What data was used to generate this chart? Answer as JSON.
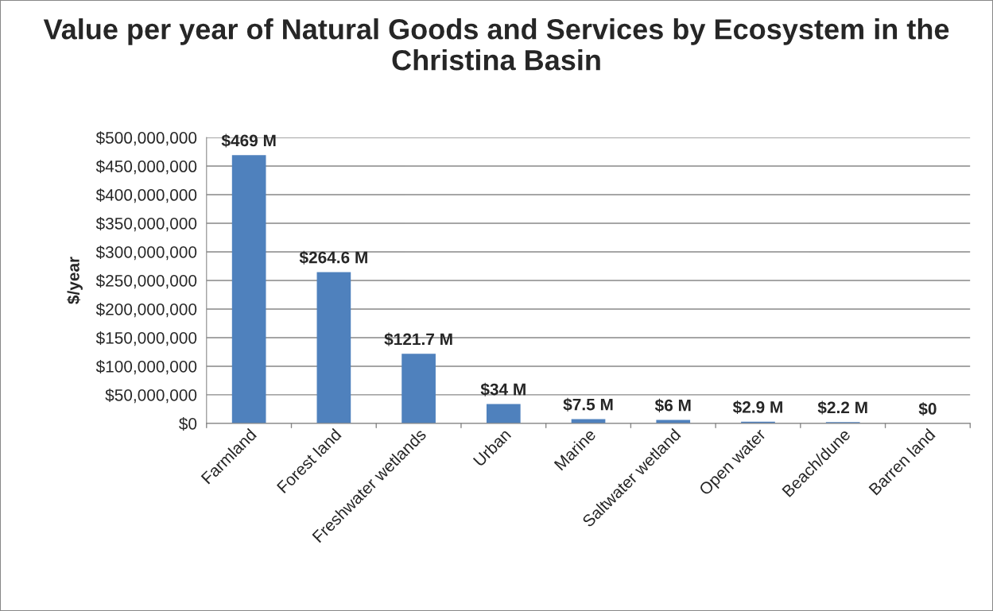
{
  "chart_data": {
    "type": "bar",
    "title": "Value per year of Natural Goods and Services by Ecosystem in the Christina Basin",
    "ylabel": "$/year",
    "categories": [
      "Farmland",
      "Forest land",
      "Freshwater wetlands",
      "Urban",
      "Marine",
      "Saltwater wetland",
      "Open water",
      "Beach/dune",
      "Barren land"
    ],
    "values": [
      469000000,
      264600000,
      121700000,
      34000000,
      7500000,
      6000000,
      2900000,
      2200000,
      0
    ],
    "value_labels": [
      "$469 M",
      "$264.6 M",
      "$121.7 M",
      "$34 M",
      "$7.5 M",
      "$6 M",
      "$2.9 M",
      "$2.2 M",
      "$0"
    ],
    "color": "#4f81bd",
    "ylim": [
      0,
      500000000
    ],
    "yticks": [
      {
        "value": 0,
        "label": "$0"
      },
      {
        "value": 50000000,
        "label": "$50,000,000"
      },
      {
        "value": 100000000,
        "label": "$100,000,000"
      },
      {
        "value": 150000000,
        "label": "$150,000,000"
      },
      {
        "value": 200000000,
        "label": "$200,000,000"
      },
      {
        "value": 250000000,
        "label": "$250,000,000"
      },
      {
        "value": 300000000,
        "label": "$300,000,000"
      },
      {
        "value": 350000000,
        "label": "$350,000,000"
      },
      {
        "value": 400000000,
        "label": "$400,000,000"
      },
      {
        "value": 450000000,
        "label": "$450,000,000"
      },
      {
        "value": 500000000,
        "label": "$500,000,000"
      }
    ],
    "grid": "y"
  }
}
